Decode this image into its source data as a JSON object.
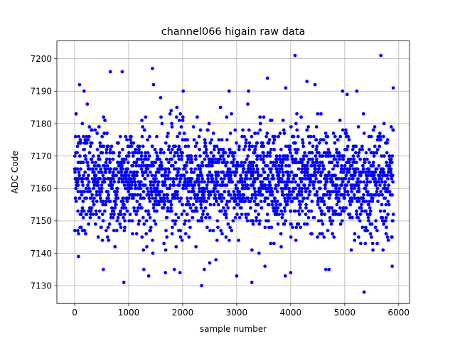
{
  "chart_data": {
    "type": "scatter",
    "title": "channel066 higain raw data",
    "xlabel": "sample number",
    "ylabel": "ADC Code",
    "xlim": [
      -330,
      6200
    ],
    "ylim": [
      7124.5,
      7205.5
    ],
    "x_ticks": [
      0,
      1000,
      2000,
      3000,
      4000,
      5000,
      6000
    ],
    "x_tick_labels": [
      "0",
      "1000",
      "2000",
      "3000",
      "4000",
      "5000",
      "6000"
    ],
    "y_ticks": [
      7130,
      7140,
      7150,
      7160,
      7170,
      7180,
      7190,
      7200
    ],
    "y_tick_labels": [
      "7130",
      "7140",
      "7150",
      "7160",
      "7170",
      "7180",
      "7190",
      "7200"
    ],
    "grid": true,
    "marker_color": "#0000ff",
    "series": [
      {
        "name": "",
        "bulk": {
          "x_start": 0,
          "x_end": 5900,
          "count": 2300,
          "y_center": 7162.5,
          "y_sigma": 8.2,
          "y_min": 7128,
          "y_max": 7201
        },
        "x": [
          3,
          70,
          90,
          660,
          880,
          910,
          1440,
          1460,
          4080,
          5670,
          5360,
          2350,
          2400,
          2500,
          3000,
          3280,
          3900,
          4000,
          3570,
          4300,
          4710,
          2860,
          3220,
          1950,
          4450,
          5900,
          5880,
          530,
          1280,
          1680,
          4960
        ],
        "y": [
          7147,
          7139,
          7192,
          7196,
          7196,
          7131,
          7197,
          7192,
          7201,
          7201,
          7128,
          7130,
          7135,
          7137,
          7133,
          7131,
          7133,
          7134,
          7194,
          7193,
          7135,
          7190,
          7190,
          7134,
          7192,
          7191,
          7136,
          7135,
          7135,
          7134,
          7190
        ]
      }
    ]
  }
}
